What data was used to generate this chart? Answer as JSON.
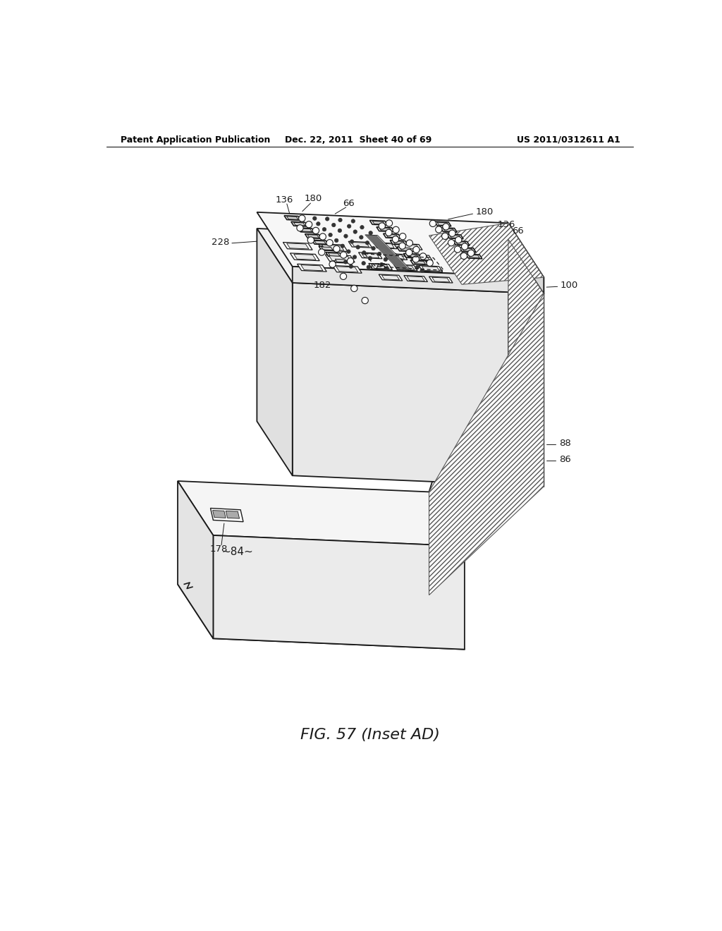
{
  "bg_color": "#ffffff",
  "header_left": "Patent Application Publication",
  "header_mid": "Dec. 22, 2011  Sheet 40 of 69",
  "header_right": "US 2011/0312611 A1",
  "caption": "FIG. 57 (Inset AD)",
  "lc": "#1a1a1a"
}
